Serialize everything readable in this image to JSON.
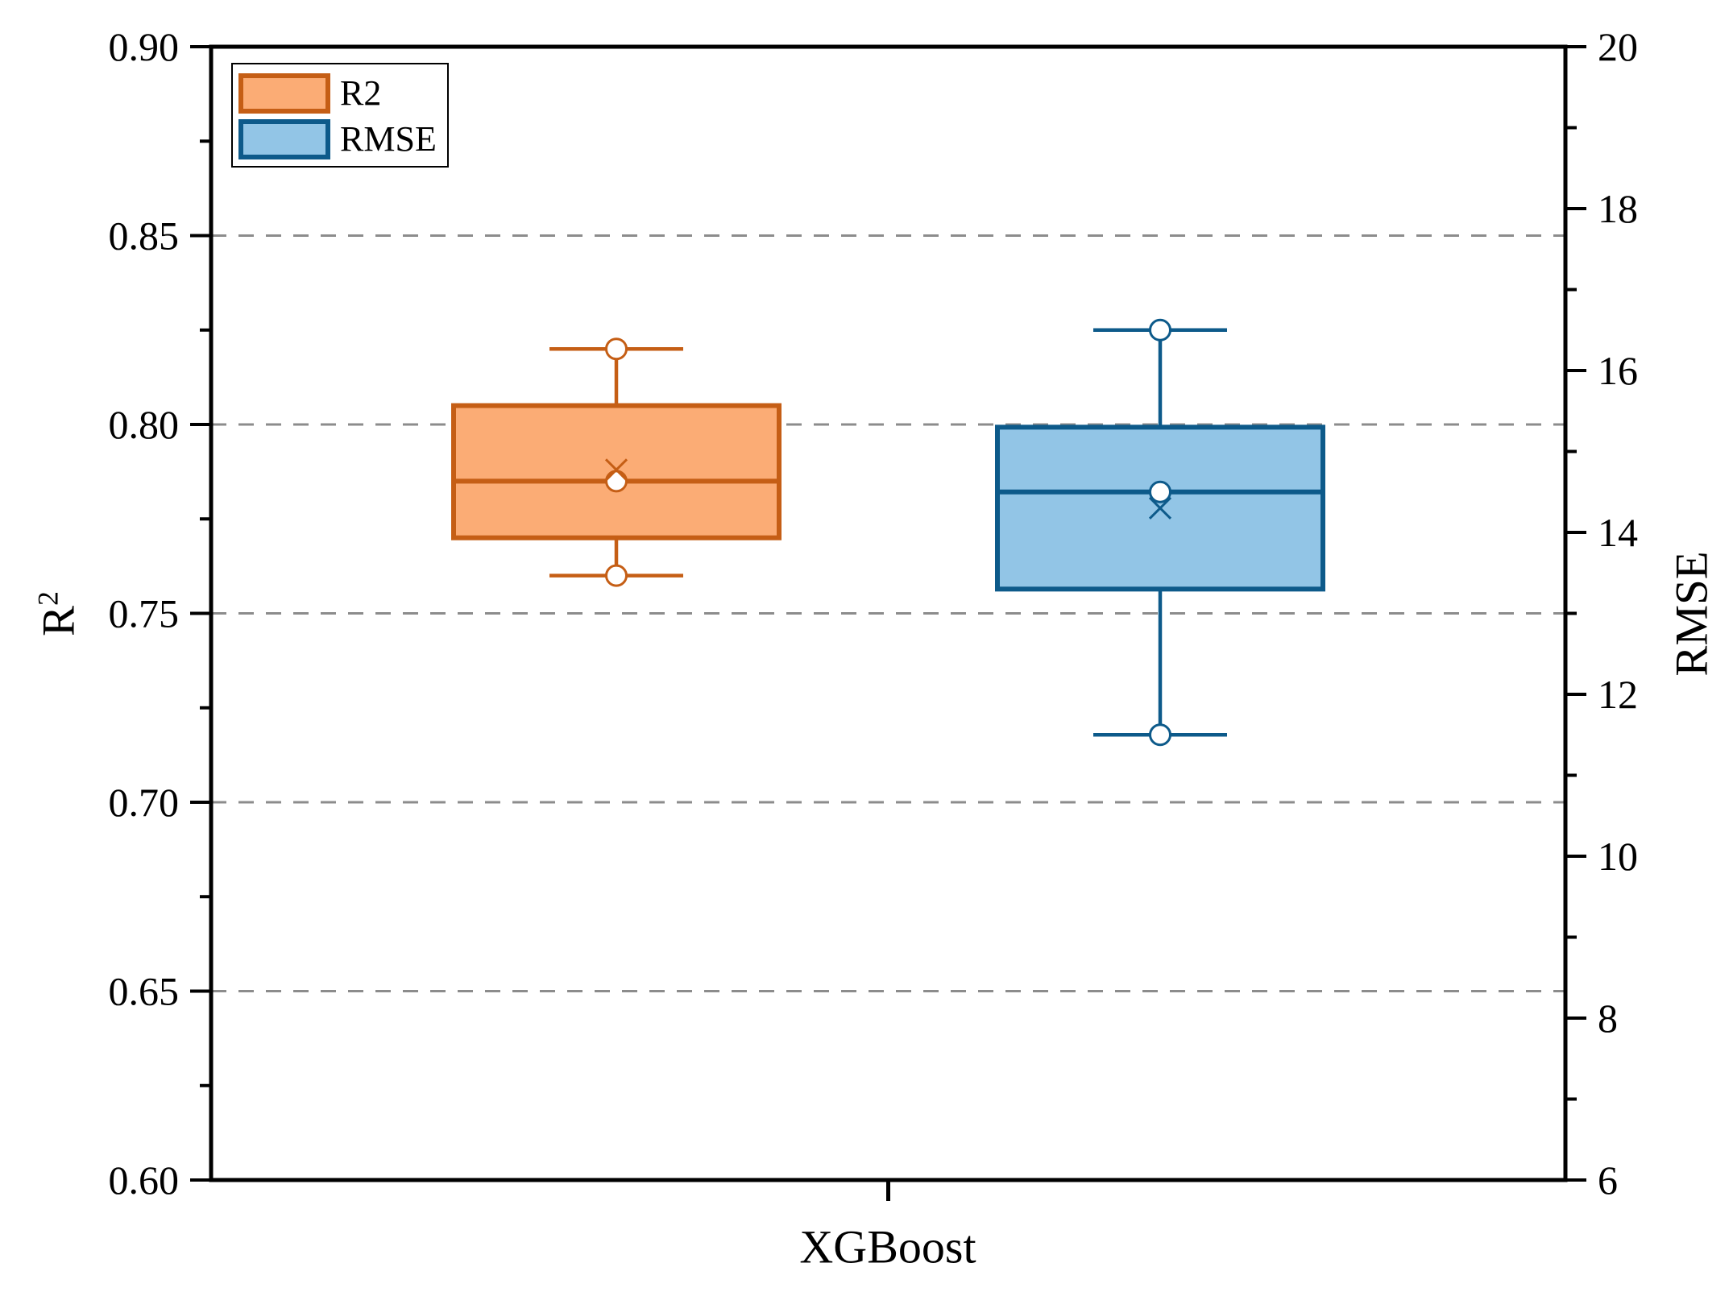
{
  "figure": {
    "background": "#ffffff",
    "frame_color": "#000000",
    "legend": {
      "items": [
        {
          "label": "R2",
          "fill": "#FBAC75",
          "stroke": "#C55E15"
        },
        {
          "label": "RMSE",
          "fill": "#92C5E6",
          "stroke": "#0D5A8A"
        }
      ]
    },
    "left_axis": {
      "label_base": "R",
      "label_sup": "2",
      "tick_labels": [
        "0.90",
        "0.85",
        "0.80",
        "0.75",
        "0.70",
        "0.65",
        "0.60"
      ],
      "tick_values": [
        0.9,
        0.85,
        0.8,
        0.75,
        0.7,
        0.65,
        0.6
      ],
      "minor_tick_values": [
        0.875,
        0.825,
        0.775,
        0.725,
        0.675,
        0.625
      ]
    },
    "right_axis": {
      "label": "RMSE",
      "tick_labels": [
        "20",
        "18",
        "16",
        "14",
        "12",
        "10",
        "8",
        "6"
      ],
      "tick_values": [
        20,
        18,
        16,
        14,
        12,
        10,
        8,
        6
      ],
      "minor_tick_values": [
        19,
        17,
        15,
        13,
        11,
        9,
        7
      ]
    },
    "x_axis": {
      "label": "XGBoost",
      "categories": [
        "XGBoost"
      ]
    },
    "gridlines": {
      "values_left_axis": [
        0.85,
        0.8,
        0.75,
        0.7,
        0.65
      ],
      "color": "#8C8C8C",
      "style": "dashed"
    }
  },
  "chart_data": {
    "type": "boxplot",
    "title": "",
    "xlabel": "XGBoost",
    "ylabel_left": "R2",
    "ylabel_right": "RMSE",
    "left_ylim": [
      0.6,
      0.9
    ],
    "right_ylim": [
      6,
      20
    ],
    "grid": "horizontal-dashed-at-left-major-ticks",
    "legend_position": "top-left-inside",
    "categories": [
      "XGBoost"
    ],
    "series": [
      {
        "name": "R2",
        "axis": "left",
        "fill": "#FBAC75",
        "stroke": "#C55E15",
        "whisker_min": 0.76,
        "q1": 0.77,
        "median": 0.785,
        "mean": 0.788,
        "q3": 0.805,
        "whisker_max": 0.82,
        "circle_markers": [
          0.82,
          0.785,
          0.76
        ]
      },
      {
        "name": "RMSE",
        "axis": "right",
        "fill": "#92C5E6",
        "stroke": "#0D5A8A",
        "whisker_min": 11.5,
        "q1": 13.3,
        "median": 14.5,
        "mean": 14.3,
        "q3": 15.3,
        "whisker_max": 16.5,
        "circle_markers": [
          16.5,
          14.5,
          11.5
        ]
      }
    ]
  }
}
